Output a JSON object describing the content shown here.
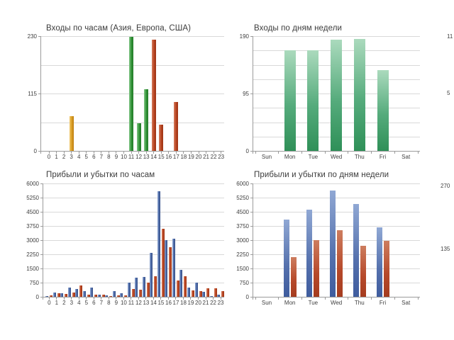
{
  "colors": {
    "asia_orange": "#d79b22",
    "europe_green": "#2f9135",
    "usa_red": "#b6421f",
    "profit_blue": "#46639f",
    "loss_red": "#b6492a",
    "weekday_green": "#2f9058",
    "gridline_gray": "#d9d9d9",
    "axis_gray": "#9b9b9b"
  },
  "chart_data": [
    {
      "id": "entries-by-hour",
      "type": "bar",
      "title": "Входы по часам (Азия, Европа, США)",
      "xlabel": "",
      "ylabel": "",
      "categories": [
        "0",
        "1",
        "2",
        "3",
        "4",
        "5",
        "6",
        "7",
        "8",
        "9",
        "10",
        "11",
        "12",
        "13",
        "14",
        "15",
        "16",
        "17",
        "18",
        "19",
        "20",
        "21",
        "22",
        "23"
      ],
      "values": [
        0,
        0,
        0,
        70,
        0,
        0,
        0,
        0,
        0,
        0,
        0,
        228,
        55,
        123,
        223,
        52,
        0,
        98,
        0,
        0,
        0,
        0,
        0,
        0
      ],
      "bar_colors": [
        null,
        null,
        null,
        "orange",
        null,
        null,
        null,
        null,
        null,
        null,
        null,
        "green",
        "green",
        "green",
        "red",
        "red",
        null,
        "red",
        null,
        null,
        null,
        null,
        null,
        null
      ],
      "ylim": [
        0,
        230
      ],
      "ytick_labels": [
        230,
        115,
        0
      ],
      "grid_divisions": 4,
      "grid": true,
      "legend_position": "none"
    },
    {
      "id": "entries-by-weekday",
      "type": "bar",
      "title": "Входы по дням недели",
      "xlabel": "",
      "ylabel": "",
      "categories": [
        "Sun",
        "Mon",
        "Tue",
        "Wed",
        "Thu",
        "Fri",
        "Sat"
      ],
      "values": [
        0,
        167,
        166,
        184,
        185,
        134,
        0
      ],
      "bar_colors": [
        null,
        "green",
        "green",
        "green",
        "green",
        "green",
        null
      ],
      "ylim": [
        0,
        190
      ],
      "ytick_labels": [
        190,
        95,
        0
      ],
      "grid_divisions": 8,
      "grid": true,
      "legend_position": "none"
    },
    {
      "id": "pnl-by-hour",
      "type": "bar",
      "title": "Прибыли и убытки по часам",
      "xlabel": "",
      "ylabel": "",
      "categories": [
        "0",
        "1",
        "2",
        "3",
        "4",
        "5",
        "6",
        "7",
        "8",
        "9",
        "10",
        "11",
        "12",
        "13",
        "14",
        "15",
        "16",
        "17",
        "18",
        "19",
        "20",
        "21",
        "22",
        "23"
      ],
      "series": [
        {
          "color": "blue",
          "values": [
            50,
            210,
            175,
            500,
            410,
            300,
            475,
            100,
            75,
            300,
            200,
            760,
            1000,
            1035,
            2330,
            5580,
            3010,
            3060,
            1420,
            500,
            740,
            250,
            50,
            125
          ]
        },
        {
          "color": "red",
          "values": [
            60,
            190,
            140,
            210,
            590,
            125,
            100,
            100,
            50,
            75,
            75,
            410,
            390,
            760,
            1075,
            3600,
            2640,
            850,
            1100,
            350,
            290,
            460,
            440,
            300
          ]
        }
      ],
      "ylim": [
        0,
        6000
      ],
      "ytick_labels": [
        6000,
        5250,
        4500,
        3750,
        3000,
        2250,
        1500,
        750,
        0
      ],
      "grid_divisions": 8,
      "grid": true,
      "legend_position": "none"
    },
    {
      "id": "pnl-by-weekday",
      "type": "bar",
      "title": "Прибыли и убытки по дням недели",
      "xlabel": "",
      "ylabel": "",
      "categories": [
        "Sun",
        "Mon",
        "Tue",
        "Wed",
        "Thu",
        "Fri",
        "Sat"
      ],
      "series": [
        {
          "color": "blue",
          "values": [
            0,
            4080,
            4600,
            5640,
            4900,
            3680,
            0
          ]
        },
        {
          "color": "red",
          "values": [
            0,
            2100,
            3000,
            3530,
            2700,
            2950,
            0
          ]
        }
      ],
      "ylim": [
        0,
        6000
      ],
      "ytick_labels": [
        6000,
        5250,
        4500,
        3750,
        3000,
        2250,
        1500,
        750,
        0
      ],
      "grid_divisions": 8,
      "grid": true,
      "legend_position": "none"
    }
  ],
  "clipped_axis_labels": [
    {
      "text": "11",
      "x": 630,
      "y": 47
    },
    {
      "text": "5",
      "x": 630,
      "y": 127
    },
    {
      "text": "270",
      "x": 621,
      "y": 258
    },
    {
      "text": "135",
      "x": 621,
      "y": 347
    }
  ]
}
